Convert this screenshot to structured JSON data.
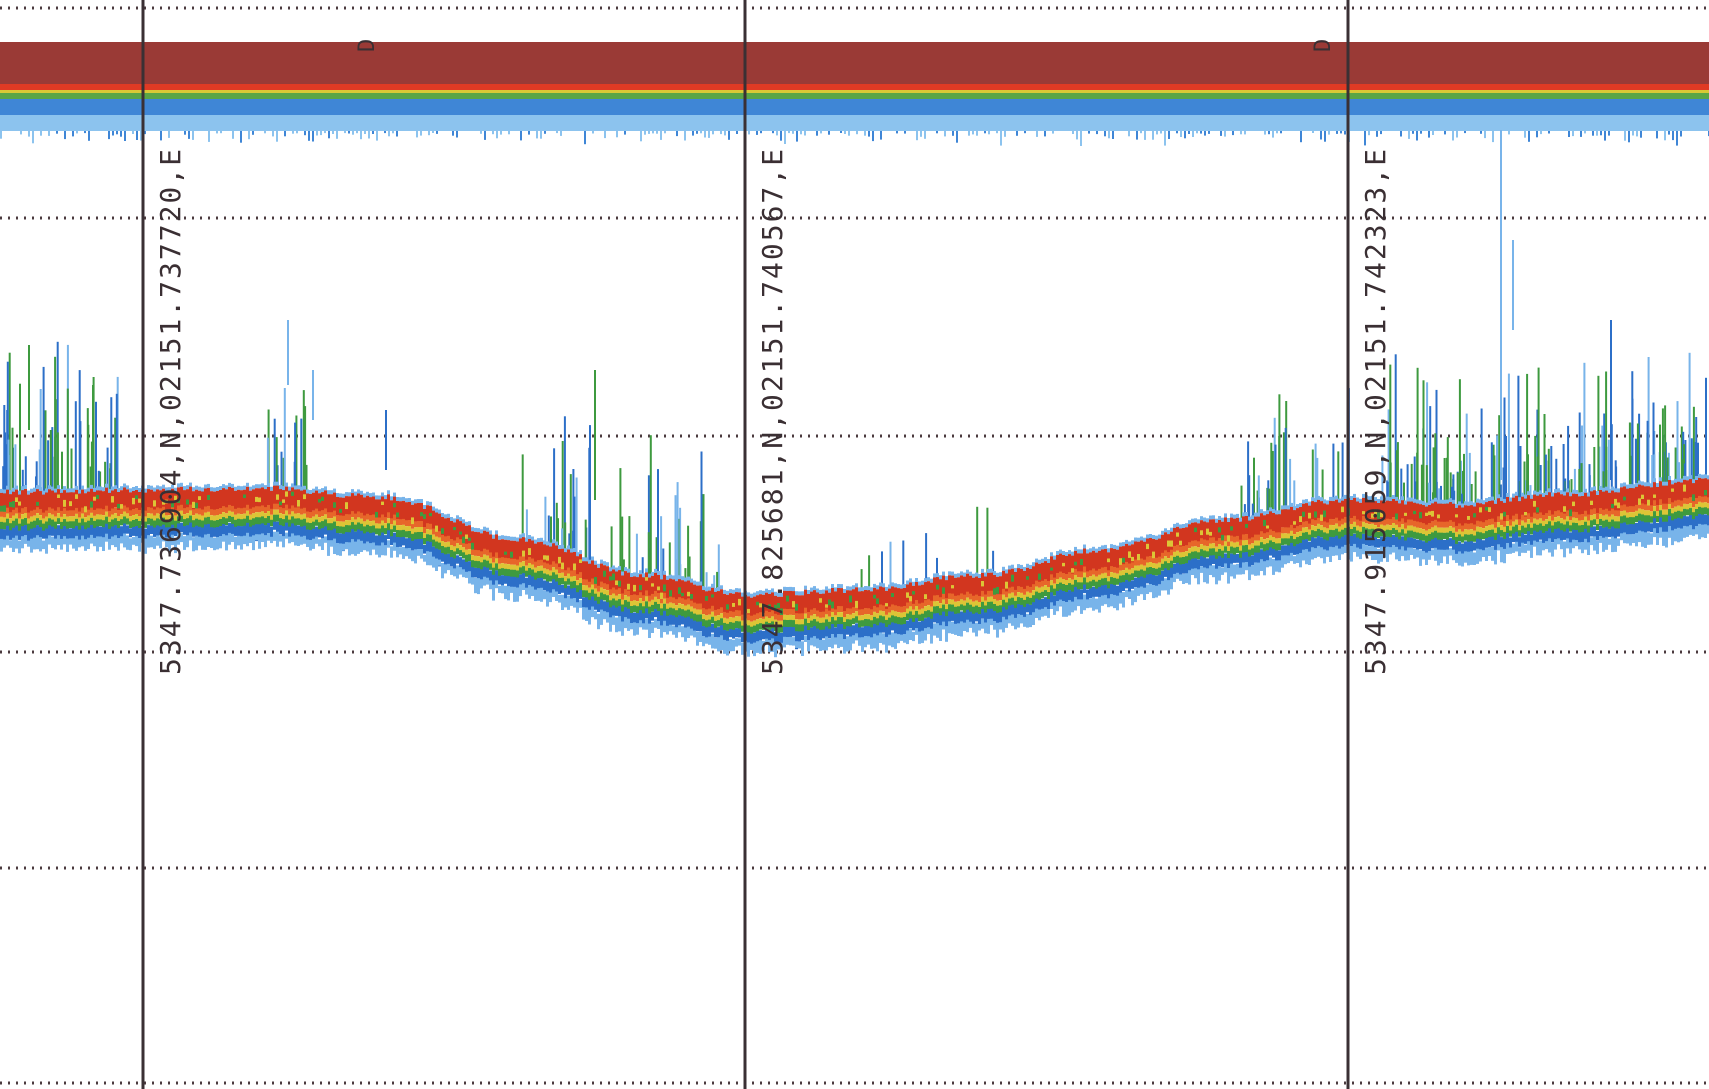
{
  "echogram": {
    "colors": {
      "background": "#ffffff",
      "surface_band": "#9a3a36",
      "surface_edge_red": "#e03a24",
      "surface_edge_yellow": "#d9c935",
      "surface_edge_green": "#5aa546",
      "surface_blue": "#3f86d6",
      "surface_light_blue": "#8cc3ee",
      "grid_line": "#2e2a2c",
      "bottom_red": "#d2361f",
      "bottom_orange": "#e7662a",
      "bottom_yellow": "#dcc536",
      "bottom_green": "#3e9a3f",
      "bottom_blue": "#2c6fc8",
      "bottom_light_blue": "#78b4ea"
    },
    "position_marks": [
      {
        "label": "5347.736904,N,02151.737720,E"
      },
      {
        "label": "5347.825681,N,02151.740567,E"
      },
      {
        "label": "5347.915059,N,02151.742323,E"
      }
    ],
    "event_marks": [
      {
        "label": "D"
      },
      {
        "label": "D"
      }
    ]
  }
}
